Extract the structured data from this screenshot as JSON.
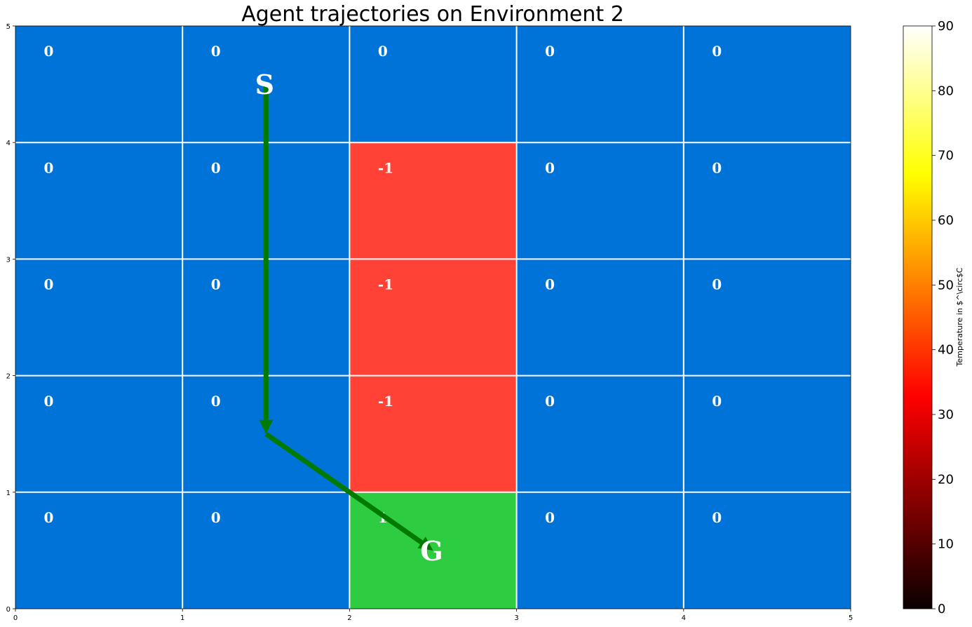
{
  "chart_data": {
    "type": "heatmap",
    "title": "Agent trajectories on Environment 2",
    "xlim": [
      0,
      5
    ],
    "ylim": [
      0,
      5
    ],
    "x_ticks": [
      "0",
      "1",
      "2",
      "3",
      "4",
      "5"
    ],
    "y_ticks": [
      "0",
      "1",
      "2",
      "3",
      "4",
      "5"
    ],
    "grid": true,
    "rows_top_to_bottom": [
      [
        "0",
        "0",
        "0",
        "0",
        "0"
      ],
      [
        "0",
        "0",
        "-1",
        "0",
        "0"
      ],
      [
        "0",
        "0",
        "-1",
        "0",
        "0"
      ],
      [
        "0",
        "0",
        "-1",
        "0",
        "0"
      ],
      [
        "0",
        "0",
        "1",
        "0",
        "0"
      ]
    ],
    "cell_colors": {
      "0": "#0073d9",
      "-1": "#ff4136",
      "1": "#2ecc40"
    },
    "grid_color": "#ffffff",
    "markers": [
      {
        "label": "S",
        "x": 1.5,
        "y": 4.5
      },
      {
        "label": "G",
        "x": 2.5,
        "y": 0.5
      }
    ],
    "trajectory": {
      "color": "#007a00",
      "points": [
        [
          1.5,
          4.5
        ],
        [
          1.5,
          1.5
        ],
        [
          2.5,
          0.5
        ]
      ]
    },
    "colorbar": {
      "label": "Temperature in $^\\circ$C",
      "range": [
        0,
        90
      ],
      "ticks": [
        "0",
        "10",
        "20",
        "30",
        "40",
        "50",
        "60",
        "70",
        "80",
        "90"
      ],
      "colormap": "hot"
    }
  }
}
